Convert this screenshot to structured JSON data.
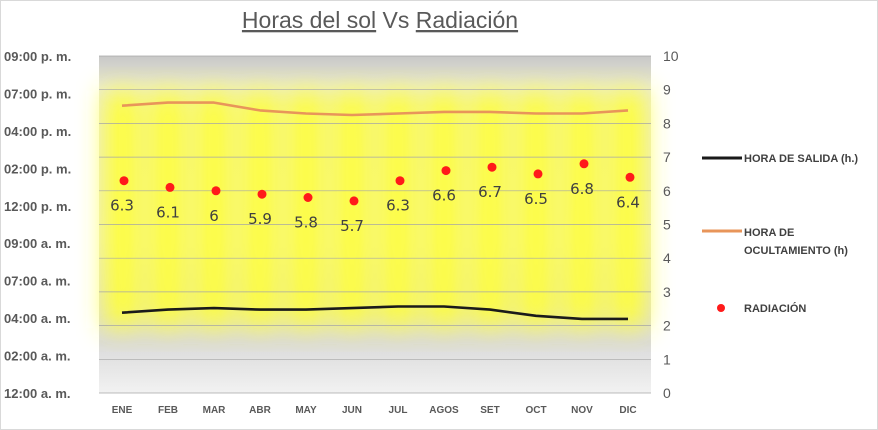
{
  "chart_data": {
    "type": "line",
    "title_parts": [
      "Horas del sol",
      " Vs ",
      "Radiación"
    ],
    "categories": [
      "ENE",
      "FEB",
      "MAR",
      "ABR",
      "MAY",
      "JUN",
      "JUL",
      "AGOS",
      "SET",
      "OCT",
      "NOV",
      "DIC"
    ],
    "y_left": {
      "ticks": [
        "12:00 a. m.",
        "02:00 a. m.",
        "04:00 a. m.",
        "07:00 a. m.",
        "09:00 a. m.",
        "12:00 p. m.",
        "02:00 p. m.",
        "04:00 p. m.",
        "07:00 p. m.",
        "09:00 p. m."
      ],
      "range_hours": [
        0,
        21.82
      ]
    },
    "y_right": {
      "ticks": [
        "0",
        "1",
        "2",
        "3",
        "4",
        "5",
        "6",
        "7",
        "8",
        "9",
        "10"
      ],
      "range": [
        0,
        10
      ]
    },
    "series": [
      {
        "name": "HORA DE SALIDA (h.)",
        "axis": "left",
        "kind": "line",
        "color": "#1a1a1a",
        "values_hours": [
          5.2,
          5.4,
          5.5,
          5.4,
          5.4,
          5.5,
          5.6,
          5.6,
          5.4,
          5.0,
          4.8,
          4.8
        ]
      },
      {
        "name": "HORA DE OCULTAMIENTO (h)",
        "axis": "left",
        "kind": "line",
        "color": "#e8955a",
        "values_hours": [
          18.6,
          18.8,
          18.8,
          18.3,
          18.1,
          18.0,
          18.1,
          18.2,
          18.2,
          18.1,
          18.1,
          18.3
        ]
      },
      {
        "name": "RADIACIÓN",
        "axis": "right",
        "kind": "scatter",
        "color": "#ff1a1a",
        "values": [
          6.3,
          6.1,
          6,
          5.9,
          5.8,
          5.7,
          6.3,
          6.6,
          6.7,
          6.5,
          6.8,
          6.4
        ],
        "labels": [
          "6.3",
          "6.1",
          "6",
          "5.9",
          "5.8",
          "5.7",
          "6.3",
          "6.6",
          "6.7",
          "6.5",
          "6.8",
          "6.4"
        ]
      }
    ],
    "legend_position": "right",
    "grid": true
  }
}
